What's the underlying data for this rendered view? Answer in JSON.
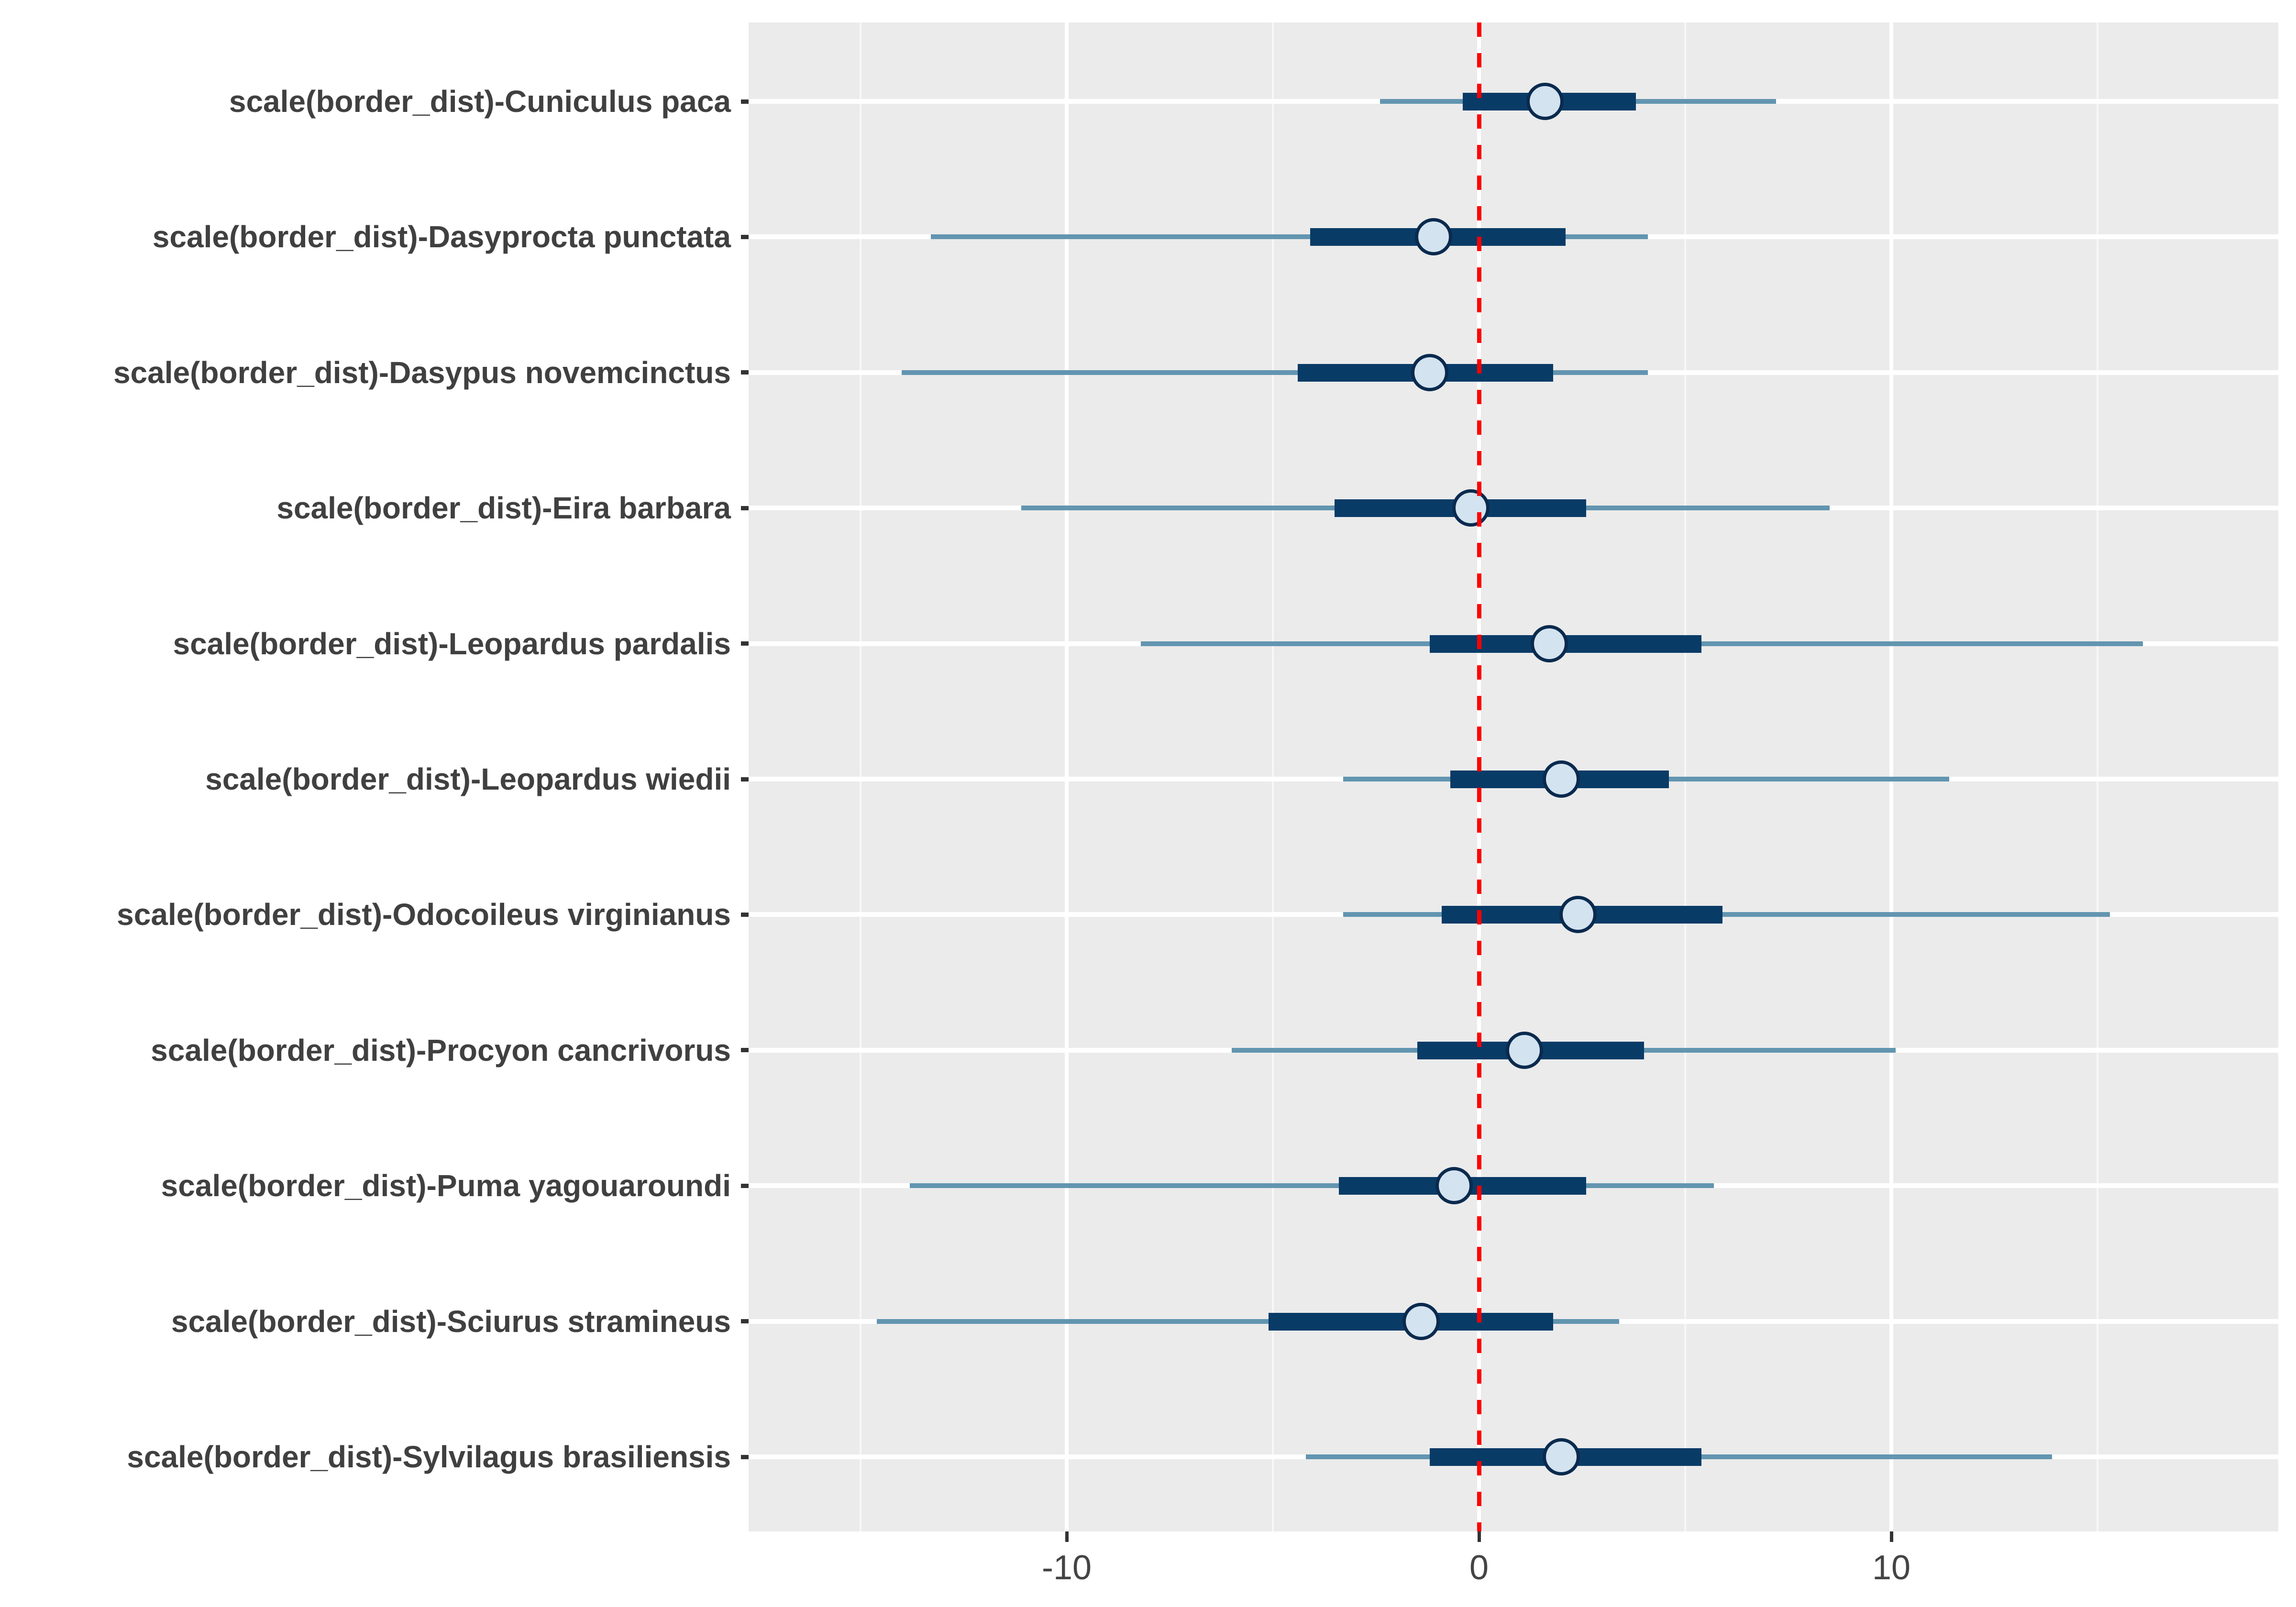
{
  "chart_data": {
    "type": "forest_plot",
    "title": "",
    "xlabel": "",
    "ylabel": "",
    "legend": "none",
    "grid": "on",
    "panel_background": "#EBEBEB",
    "x_axis": {
      "tick_labels": [
        "-10",
        "0",
        "10"
      ],
      "tick_values": [
        -10,
        0,
        10
      ],
      "minor_tick_values": [
        -15,
        -5,
        5,
        15
      ],
      "range": [
        -17.7,
        19.4
      ]
    },
    "reference_line": {
      "value": 0,
      "style": "dashed",
      "color": "#FF0000"
    },
    "rows": [
      {
        "label": "scale(border_dist)-Cuniculus paca",
        "point": 1.6,
        "inner_interval": [
          -0.4,
          3.8
        ],
        "outer_interval": [
          -2.4,
          7.2
        ]
      },
      {
        "label": "scale(border_dist)-Dasyprocta punctata",
        "point": -1.1,
        "inner_interval": [
          -4.1,
          2.1
        ],
        "outer_interval": [
          -13.3,
          4.1
        ]
      },
      {
        "label": "scale(border_dist)-Dasypus novemcinctus",
        "point": -1.2,
        "inner_interval": [
          -4.4,
          1.8
        ],
        "outer_interval": [
          -14.0,
          4.1
        ]
      },
      {
        "label": "scale(border_dist)-Eira barbara",
        "point": -0.2,
        "inner_interval": [
          -3.5,
          2.6
        ],
        "outer_interval": [
          -11.1,
          8.5
        ]
      },
      {
        "label": "scale(border_dist)-Leopardus pardalis",
        "point": 1.7,
        "inner_interval": [
          -1.2,
          5.4
        ],
        "outer_interval": [
          -8.2,
          16.1
        ]
      },
      {
        "label": "scale(border_dist)-Leopardus wiedii",
        "point": 2.0,
        "inner_interval": [
          -0.7,
          4.6
        ],
        "outer_interval": [
          -3.3,
          11.4
        ]
      },
      {
        "label": "scale(border_dist)-Odocoileus virginianus",
        "point": 2.4,
        "inner_interval": [
          -0.9,
          5.9
        ],
        "outer_interval": [
          -3.3,
          15.3
        ]
      },
      {
        "label": "scale(border_dist)-Procyon cancrivorus",
        "point": 1.1,
        "inner_interval": [
          -1.5,
          4.0
        ],
        "outer_interval": [
          -6.0,
          10.1
        ]
      },
      {
        "label": "scale(border_dist)-Puma yagouaroundi",
        "point": -0.6,
        "inner_interval": [
          -3.4,
          2.6
        ],
        "outer_interval": [
          -13.8,
          5.7
        ]
      },
      {
        "label": "scale(border_dist)-Sciurus stramineus",
        "point": -1.4,
        "inner_interval": [
          -5.1,
          1.8
        ],
        "outer_interval": [
          -14.6,
          3.4
        ]
      },
      {
        "label": "scale(border_dist)-Sylvilagus brasiliensis",
        "point": 2.0,
        "inner_interval": [
          -1.2,
          5.4
        ],
        "outer_interval": [
          -4.2,
          13.9
        ]
      }
    ]
  },
  "colors": {
    "panel_background": "#EBEBEB",
    "grid_major": "#FFFFFF",
    "grid_minor": "#F7F7F7",
    "outer_interval": "#6295B0",
    "inner_interval": "#093B67",
    "marker_fill": "#D3E3F0",
    "marker_stroke": "#0A2A4E",
    "reference_line": "#FF0000",
    "axis_text": "#404040",
    "tick_mark": "#333333"
  }
}
